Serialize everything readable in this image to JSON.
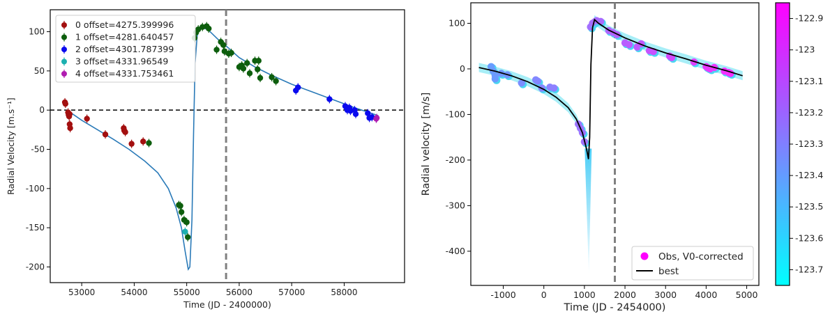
{
  "chart_data": [
    {
      "type": "scatter",
      "xlabel": "Time (JD - 2400000)",
      "ylabel": "Radial Velocity [m.s⁻¹]",
      "xlim": [
        52400,
        59150
      ],
      "ylim": [
        -220,
        128
      ],
      "xticks": [
        53000,
        54000,
        55000,
        56000,
        57000,
        58000
      ],
      "yticks": [
        -200,
        -150,
        -100,
        -50,
        0,
        50,
        100
      ],
      "hline_y": 0,
      "vline_x": 55750,
      "legend_position": "top-left",
      "series": [
        {
          "name": "0 offset=4275.399996",
          "color": "#a30f0f",
          "points": [
            [
              52680,
              10
            ],
            [
              52690,
              8
            ],
            [
              52740,
              -3
            ],
            [
              52750,
              -6
            ],
            [
              52760,
              -8
            ],
            [
              52770,
              -18
            ],
            [
              52780,
              -23
            ],
            [
              52770,
              -5
            ],
            [
              53100,
              -11
            ],
            [
              53450,
              -31
            ],
            [
              53800,
              -23
            ],
            [
              53810,
              -26
            ],
            [
              53830,
              -28
            ],
            [
              53950,
              -43
            ],
            [
              54170,
              -40
            ]
          ]
        },
        {
          "name": "1 offset=4281.640457",
          "color": "#0d5e0d",
          "points": [
            [
              54280,
              -42
            ],
            [
              54850,
              -121
            ],
            [
              54880,
              -122
            ],
            [
              54900,
              -130
            ],
            [
              54950,
              -140
            ],
            [
              55000,
              -143
            ],
            [
              55020,
              -162
            ],
            [
              55150,
              92
            ],
            [
              55180,
              99
            ],
            [
              55220,
              103
            ],
            [
              55300,
              106
            ],
            [
              55380,
              107
            ],
            [
              55420,
              104
            ],
            [
              55570,
              77
            ],
            [
              55650,
              87
            ],
            [
              55700,
              83
            ],
            [
              55720,
              75
            ],
            [
              55800,
              72
            ],
            [
              55850,
              73
            ],
            [
              56000,
              55
            ],
            [
              56050,
              57
            ],
            [
              56080,
              53
            ],
            [
              56150,
              60
            ],
            [
              56200,
              47
            ],
            [
              56300,
              63
            ],
            [
              56350,
              52
            ],
            [
              56370,
              63
            ],
            [
              56400,
              41
            ],
            [
              56620,
              42
            ],
            [
              56700,
              37
            ]
          ]
        },
        {
          "name": "2 offset=4301.787399",
          "color": "#0a0aee",
          "points": [
            [
              57080,
              25
            ],
            [
              57120,
              29
            ],
            [
              57720,
              14
            ],
            [
              58020,
              5
            ],
            [
              58050,
              2
            ],
            [
              58060,
              0
            ],
            [
              58100,
              3
            ],
            [
              58120,
              -1
            ],
            [
              58200,
              0
            ],
            [
              58220,
              -5
            ],
            [
              58450,
              -4
            ],
            [
              58480,
              -10
            ],
            [
              58530,
              -9
            ]
          ]
        },
        {
          "name": "3 offset=4331.96549",
          "color": "#1cb0b0",
          "points": [
            [
              54970,
              -155
            ]
          ]
        },
        {
          "name": "4 offset=4331.753461",
          "color": "#b01cb0",
          "points": [
            [
              58610,
              -11
            ],
            [
              58620,
              -10
            ]
          ]
        }
      ],
      "model": {
        "color": "#2a7ab8",
        "points": [
          [
            52720,
            0
          ],
          [
            53000,
            -13
          ],
          [
            53300,
            -25
          ],
          [
            53600,
            -37
          ],
          [
            53900,
            -50
          ],
          [
            54200,
            -65
          ],
          [
            54450,
            -80
          ],
          [
            54650,
            -100
          ],
          [
            54800,
            -125
          ],
          [
            54900,
            -150
          ],
          [
            54970,
            -180
          ],
          [
            55030,
            -203
          ],
          [
            55060,
            -200
          ],
          [
            55100,
            -140
          ],
          [
            55130,
            -30
          ],
          [
            55160,
            60
          ],
          [
            55200,
            95
          ],
          [
            55250,
            104
          ],
          [
            55300,
            105
          ],
          [
            55400,
            103
          ],
          [
            55600,
            90
          ],
          [
            55800,
            79
          ],
          [
            56000,
            67
          ],
          [
            56300,
            55
          ],
          [
            56600,
            45
          ],
          [
            57000,
            33
          ],
          [
            57400,
            23
          ],
          [
            57800,
            13
          ],
          [
            58200,
            3
          ],
          [
            58650,
            -7
          ]
        ]
      }
    },
    {
      "type": "scatter",
      "xlabel": "Time (JD - 2454000)",
      "ylabel": "Radial velocity [m/s]",
      "xlim": [
        -1800,
        5300
      ],
      "ylim": [
        -475,
        145
      ],
      "xticks": [
        -1000,
        0,
        1000,
        2000,
        3000,
        4000,
        5000
      ],
      "yticks": [
        -400,
        -300,
        -200,
        -100,
        0,
        100
      ],
      "vline_x": 1750,
      "legend_position": "bottom-right",
      "colorbar": {
        "min": -123.75,
        "max": -122.85,
        "ticks": [
          -122.9,
          -123.0,
          -123.1,
          -123.2,
          -123.3,
          -123.4,
          -123.5,
          -123.6,
          -123.7
        ],
        "colormap": "cool"
      },
      "series": [
        {
          "name": "Obs, V0-corrected",
          "color": "#ff00ff",
          "points": [
            [
              -1300,
              5
            ],
            [
              -1250,
              -5
            ],
            [
              -1200,
              -15
            ],
            [
              -1200,
              -22
            ],
            [
              -1050,
              -10
            ],
            [
              -900,
              -13
            ],
            [
              -550,
              -31
            ],
            [
              -200,
              -24
            ],
            [
              -150,
              -27
            ],
            [
              -50,
              -42
            ],
            [
              150,
              -40
            ],
            [
              250,
              -42
            ],
            [
              850,
              -121
            ],
            [
              900,
              -130
            ],
            [
              950,
              -140
            ],
            [
              1000,
              -160
            ],
            [
              1150,
              92
            ],
            [
              1200,
              100
            ],
            [
              1250,
              103
            ],
            [
              1300,
              106
            ],
            [
              1400,
              104
            ],
            [
              1600,
              84
            ],
            [
              1700,
              80
            ],
            [
              1800,
              75
            ],
            [
              2000,
              57
            ],
            [
              2100,
              53
            ],
            [
              2300,
              48
            ],
            [
              2400,
              55
            ],
            [
              2600,
              40
            ],
            [
              2700,
              38
            ],
            [
              3100,
              28
            ],
            [
              3150,
              25
            ],
            [
              3700,
              15
            ],
            [
              4000,
              5
            ],
            [
              4050,
              2
            ],
            [
              4100,
              0
            ],
            [
              4200,
              3
            ],
            [
              4450,
              -5
            ],
            [
              4550,
              -8
            ],
            [
              4600,
              -10
            ]
          ]
        }
      ],
      "model": {
        "name": "best",
        "color": "#000000",
        "points": [
          [
            -1600,
            3
          ],
          [
            -1200,
            -5
          ],
          [
            -800,
            -15
          ],
          [
            -400,
            -28
          ],
          [
            0,
            -45
          ],
          [
            300,
            -62
          ],
          [
            600,
            -85
          ],
          [
            800,
            -110
          ],
          [
            950,
            -140
          ],
          [
            1050,
            -175
          ],
          [
            1100,
            -198
          ],
          [
            1130,
            -150
          ],
          [
            1160,
            10
          ],
          [
            1200,
            90
          ],
          [
            1250,
            108
          ],
          [
            1350,
            100
          ],
          [
            1600,
            85
          ],
          [
            2000,
            68
          ],
          [
            2500,
            50
          ],
          [
            3000,
            35
          ],
          [
            3500,
            22
          ],
          [
            4000,
            8
          ],
          [
            4500,
            -4
          ],
          [
            4900,
            -15
          ]
        ]
      }
    }
  ]
}
